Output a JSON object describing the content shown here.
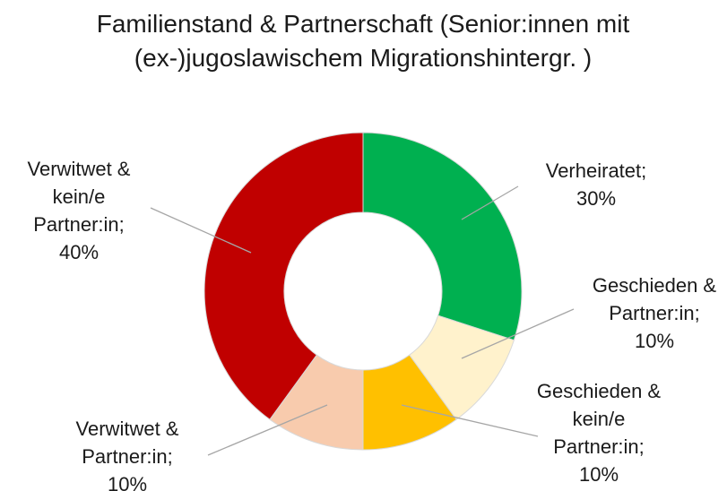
{
  "chart_data": {
    "type": "donut",
    "title": "Familienstand & Partnerschaft (Senior:innen mit (ex-)jugoslawischem Migrationshintergr. )",
    "categories": [
      "Verheiratet;",
      "Geschieden & Partner:in;",
      "Geschieden & kein/e Partner:in;",
      "Verwitwet & Partner:in;",
      "Verwitwet & kein/e Partner:in;"
    ],
    "values": [
      30,
      10,
      10,
      10,
      40
    ],
    "value_labels": [
      "30%",
      "10%",
      "10%",
      "10%",
      "40%"
    ],
    "colors": [
      "#00b050",
      "#fff2cc",
      "#ffc000",
      "#f8cbad",
      "#c00000"
    ]
  }
}
